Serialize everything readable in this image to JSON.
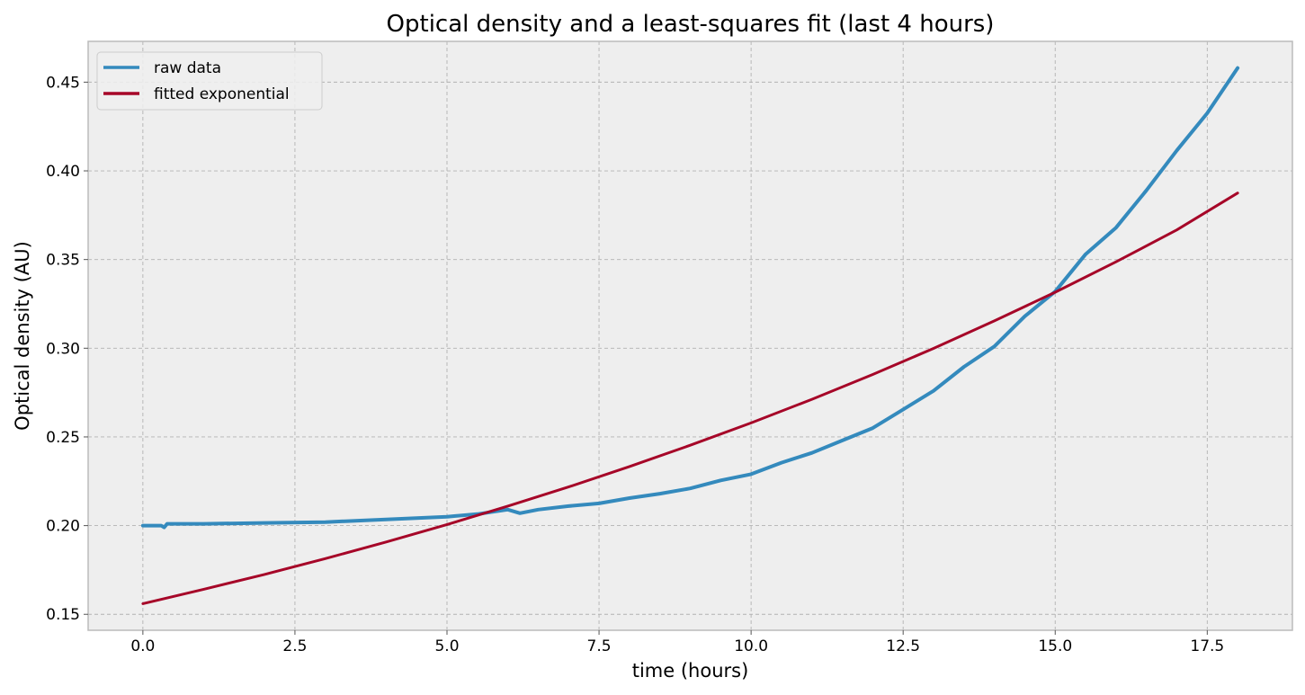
{
  "chart_data": {
    "type": "line",
    "title": "Optical density and a least-squares fit (last 4 hours)",
    "xlabel": "time (hours)",
    "ylabel": "Optical density (AU)",
    "xlim": [
      -0.9,
      18.9
    ],
    "ylim": [
      0.141,
      0.473
    ],
    "x_ticks": [
      0.0,
      2.5,
      5.0,
      7.5,
      10.0,
      12.5,
      15.0,
      17.5
    ],
    "x_tick_labels": [
      "0.0",
      "2.5",
      "5.0",
      "7.5",
      "10.0",
      "12.5",
      "15.0",
      "17.5"
    ],
    "y_ticks": [
      0.15,
      0.2,
      0.25,
      0.3,
      0.35,
      0.4,
      0.45
    ],
    "y_tick_labels": [
      "0.15",
      "0.20",
      "0.25",
      "0.30",
      "0.35",
      "0.40",
      "0.45"
    ],
    "grid": true,
    "legend_position": "upper-left",
    "series": [
      {
        "name": "raw data",
        "color": "#348abd",
        "x": [
          0.0,
          0.3,
          0.35,
          0.4,
          1.0,
          2.0,
          3.0,
          4.0,
          5.0,
          5.5,
          6.0,
          6.2,
          6.5,
          7.0,
          7.5,
          8.0,
          8.5,
          9.0,
          9.5,
          10.0,
          10.5,
          11.0,
          11.5,
          12.0,
          12.5,
          13.0,
          13.5,
          14.0,
          14.5,
          15.0,
          15.5,
          16.0,
          16.5,
          17.0,
          17.5,
          18.0
        ],
        "y": [
          0.2,
          0.2,
          0.199,
          0.201,
          0.201,
          0.2015,
          0.202,
          0.2035,
          0.205,
          0.2065,
          0.209,
          0.207,
          0.209,
          0.211,
          0.2125,
          0.2155,
          0.218,
          0.221,
          0.2255,
          0.229,
          0.2355,
          0.241,
          0.248,
          0.255,
          0.2655,
          0.276,
          0.2895,
          0.301,
          0.318,
          0.332,
          0.353,
          0.368,
          0.389,
          0.4115,
          0.4325,
          0.458
        ]
      },
      {
        "name": "fitted exponential",
        "color": "#a60628",
        "x": [
          0.0,
          1.0,
          2.0,
          3.0,
          4.0,
          5.0,
          6.0,
          7.0,
          8.0,
          9.0,
          10.0,
          11.0,
          12.0,
          13.0,
          14.0,
          15.0,
          16.0,
          17.0,
          18.0
        ],
        "y": [
          0.156,
          0.1641,
          0.1725,
          0.1814,
          0.1908,
          0.2006,
          0.211,
          0.2218,
          0.2333,
          0.2453,
          0.2579,
          0.2712,
          0.2852,
          0.2999,
          0.3154,
          0.3316,
          0.3487,
          0.3667,
          0.3875
        ]
      }
    ]
  }
}
